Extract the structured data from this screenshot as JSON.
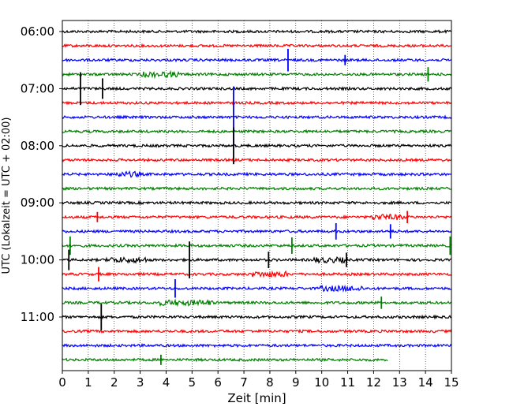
{
  "chart_data": {
    "type": "line",
    "title": "",
    "xlabel": "Zeit  [min]",
    "ylabel": "UTC (Lokalzeit = UTC + 02:00)",
    "xlim": [
      0,
      15
    ],
    "xticks": [
      0,
      1,
      2,
      3,
      4,
      5,
      6,
      7,
      8,
      9,
      10,
      11,
      12,
      13,
      14,
      15
    ],
    "grid": "vertical dotted",
    "ytick_labels": [
      "06:00",
      "07:00",
      "08:00",
      "09:00",
      "10:00",
      "11:00"
    ],
    "ytick_rows": [
      0,
      4,
      8,
      12,
      16,
      20
    ],
    "row_interval_min": 15,
    "colors": [
      "#000000",
      "#ff0000",
      "#0000ff",
      "#008000"
    ],
    "rows": [
      {
        "start": "06:00",
        "color": "#000000",
        "end_min": 15
      },
      {
        "start": "06:15",
        "color": "#ff0000",
        "end_min": 15
      },
      {
        "start": "06:30",
        "color": "#0000ff",
        "end_min": 15
      },
      {
        "start": "06:45",
        "color": "#008000",
        "end_min": 15
      },
      {
        "start": "07:00",
        "color": "#000000",
        "end_min": 15
      },
      {
        "start": "07:15",
        "color": "#ff0000",
        "end_min": 15
      },
      {
        "start": "07:30",
        "color": "#0000ff",
        "end_min": 15
      },
      {
        "start": "07:45",
        "color": "#008000",
        "end_min": 15
      },
      {
        "start": "08:00",
        "color": "#000000",
        "end_min": 15
      },
      {
        "start": "08:15",
        "color": "#ff0000",
        "end_min": 15
      },
      {
        "start": "08:30",
        "color": "#0000ff",
        "end_min": 15
      },
      {
        "start": "08:45",
        "color": "#008000",
        "end_min": 15
      },
      {
        "start": "09:00",
        "color": "#000000",
        "end_min": 15
      },
      {
        "start": "09:15",
        "color": "#ff0000",
        "end_min": 15
      },
      {
        "start": "09:30",
        "color": "#0000ff",
        "end_min": 15
      },
      {
        "start": "09:45",
        "color": "#008000",
        "end_min": 15
      },
      {
        "start": "10:00",
        "color": "#000000",
        "end_min": 15
      },
      {
        "start": "10:15",
        "color": "#ff0000",
        "end_min": 15
      },
      {
        "start": "10:30",
        "color": "#0000ff",
        "end_min": 15
      },
      {
        "start": "10:45",
        "color": "#008000",
        "end_min": 15
      },
      {
        "start": "11:00",
        "color": "#000000",
        "end_min": 15
      },
      {
        "start": "11:15",
        "color": "#ff0000",
        "end_min": 15
      },
      {
        "start": "11:30",
        "color": "#0000ff",
        "end_min": 15
      },
      {
        "start": "11:45",
        "color": "#008000",
        "end_min": 12.55
      }
    ],
    "events": [
      {
        "row": 2,
        "t": 8.7,
        "amp": 1.1
      },
      {
        "row": 2,
        "t": 10.9,
        "amp": 0.5
      },
      {
        "row": 3,
        "t": 14.1,
        "amp": 0.7
      },
      {
        "row": 4,
        "t": 0.7,
        "amp": 1.6
      },
      {
        "row": 4,
        "t": 1.55,
        "amp": 1.0
      },
      {
        "row": 6,
        "t": 6.6,
        "amp": 3.0
      },
      {
        "row": 8,
        "t": 6.6,
        "amp": 1.8
      },
      {
        "row": 13,
        "t": 1.35,
        "amp": 0.5
      },
      {
        "row": 13,
        "t": 13.3,
        "amp": 0.6
      },
      {
        "row": 14,
        "t": 10.55,
        "amp": 0.8
      },
      {
        "row": 14,
        "t": 12.65,
        "amp": 0.7
      },
      {
        "row": 15,
        "t": 0.3,
        "amp": 0.9
      },
      {
        "row": 15,
        "t": 8.85,
        "amp": 0.8
      },
      {
        "row": 15,
        "t": 14.95,
        "amp": 0.9
      },
      {
        "row": 16,
        "t": 0.25,
        "amp": 1.0
      },
      {
        "row": 16,
        "t": 4.9,
        "amp": 1.8
      },
      {
        "row": 16,
        "t": 7.95,
        "amp": 0.8
      },
      {
        "row": 16,
        "t": 10.95,
        "amp": 0.7
      },
      {
        "row": 17,
        "t": 1.4,
        "amp": 0.7
      },
      {
        "row": 18,
        "t": 4.35,
        "amp": 0.9
      },
      {
        "row": 19,
        "t": 12.3,
        "amp": 0.6
      },
      {
        "row": 20,
        "t": 1.5,
        "amp": 1.3
      },
      {
        "row": 23,
        "t": 3.8,
        "amp": 0.5
      }
    ],
    "noise_bursts": [
      {
        "row": 3,
        "t0": 3.0,
        "t1": 4.5
      },
      {
        "row": 10,
        "t0": 2.0,
        "t1": 3.0
      },
      {
        "row": 13,
        "t0": 11.9,
        "t1": 13.2
      },
      {
        "row": 16,
        "t0": 1.7,
        "t1": 3.3
      },
      {
        "row": 16,
        "t0": 9.7,
        "t1": 11.0
      },
      {
        "row": 17,
        "t0": 7.3,
        "t1": 8.7
      },
      {
        "row": 18,
        "t0": 9.9,
        "t1": 11.6
      },
      {
        "row": 19,
        "t0": 3.6,
        "t1": 5.8
      }
    ]
  }
}
